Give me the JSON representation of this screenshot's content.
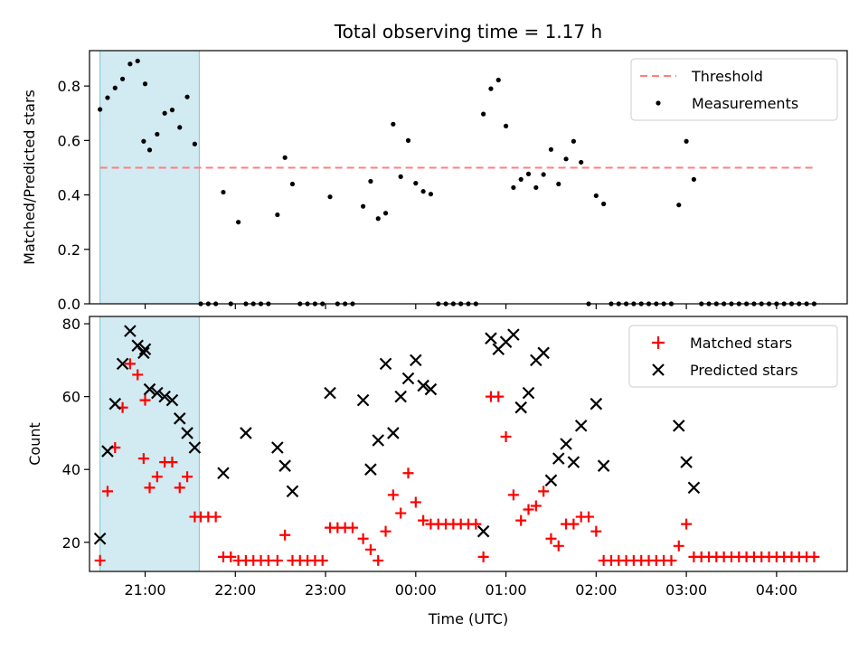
{
  "title": "Total observing time = 1.17 h",
  "colors": {
    "matched": "#ff0000",
    "predicted": "#000000",
    "threshold": "#ff7f7f",
    "shade": "#add8e6"
  },
  "chart_data": [
    {
      "type": "scatter",
      "ylabel": "Matched/Predicted stars",
      "xlim": [
        "20:23",
        "04:47"
      ],
      "ylim": [
        0,
        0.93
      ],
      "yticks": [
        "0.0",
        "0.2",
        "0.4",
        "0.6",
        "0.8"
      ],
      "ytick_values": [
        0,
        0.2,
        0.4,
        0.6,
        0.8
      ],
      "shaded_span": [
        "20:30",
        "21:36"
      ],
      "threshold": {
        "name": "Threshold",
        "value": 0.5,
        "x_range": [
          "20:30",
          "04:24"
        ]
      },
      "series": [
        {
          "name": "Measurements",
          "marker": "dot",
          "points": [
            [
              "20:30",
              0.714
            ],
            [
              "20:35",
              0.757
            ],
            [
              "20:40",
              0.793
            ],
            [
              "20:45",
              0.826
            ],
            [
              "20:50",
              0.881
            ],
            [
              "20:55",
              0.892
            ],
            [
              "21:00",
              0.808
            ],
            [
              "20:59",
              0.597
            ],
            [
              "21:03",
              0.565
            ],
            [
              "21:08",
              0.623
            ],
            [
              "21:13",
              0.7
            ],
            [
              "21:18",
              0.712
            ],
            [
              "21:23",
              0.648
            ],
            [
              "21:28",
              0.76
            ],
            [
              "21:33",
              0.587
            ],
            [
              "21:37",
              0.0
            ],
            [
              "21:42",
              0.0
            ],
            [
              "21:47",
              0.0
            ],
            [
              "21:52",
              0.41
            ],
            [
              "21:57",
              0.0
            ],
            [
              "22:02",
              0.3
            ],
            [
              "22:07",
              0.0
            ],
            [
              "22:12",
              0.0
            ],
            [
              "22:17",
              0.0
            ],
            [
              "22:22",
              0.0
            ],
            [
              "22:28",
              0.327
            ],
            [
              "22:33",
              0.537
            ],
            [
              "22:38",
              0.44
            ],
            [
              "22:43",
              0.0
            ],
            [
              "22:48",
              0.0
            ],
            [
              "22:53",
              0.0
            ],
            [
              "22:58",
              0.0
            ],
            [
              "23:03",
              0.393
            ],
            [
              "23:08",
              0.0
            ],
            [
              "23:13",
              0.0
            ],
            [
              "23:18",
              0.0
            ],
            [
              "23:25",
              0.358
            ],
            [
              "23:30",
              0.45
            ],
            [
              "23:35",
              0.313
            ],
            [
              "23:40",
              0.333
            ],
            [
              "23:45",
              0.66
            ],
            [
              "23:50",
              0.467
            ],
            [
              "23:55",
              0.6
            ],
            [
              "24:00",
              0.443
            ],
            [
              "24:05",
              0.413
            ],
            [
              "24:10",
              0.403
            ],
            [
              "24:15",
              0.0
            ],
            [
              "24:20",
              0.0
            ],
            [
              "24:25",
              0.0
            ],
            [
              "24:30",
              0.0
            ],
            [
              "24:35",
              0.0
            ],
            [
              "24:40",
              0.0
            ],
            [
              "24:45",
              0.697
            ],
            [
              "24:50",
              0.79
            ],
            [
              "24:55",
              0.822
            ],
            [
              "25:00",
              0.653
            ],
            [
              "25:05",
              0.427
            ],
            [
              "25:10",
              0.457
            ],
            [
              "25:15",
              0.477
            ],
            [
              "25:20",
              0.427
            ],
            [
              "25:25",
              0.475
            ],
            [
              "25:30",
              0.567
            ],
            [
              "25:35",
              0.44
            ],
            [
              "25:40",
              0.532
            ],
            [
              "25:45",
              0.597
            ],
            [
              "25:50",
              0.52
            ],
            [
              "25:55",
              0.0
            ],
            [
              "26:00",
              0.397
            ],
            [
              "26:05",
              0.367
            ],
            [
              "26:10",
              0.0
            ],
            [
              "26:15",
              0.0
            ],
            [
              "26:20",
              0.0
            ],
            [
              "26:25",
              0.0
            ],
            [
              "26:30",
              0.0
            ],
            [
              "26:35",
              0.0
            ],
            [
              "26:40",
              0.0
            ],
            [
              "26:45",
              0.0
            ],
            [
              "26:50",
              0.0
            ],
            [
              "26:55",
              0.363
            ],
            [
              "27:00",
              0.597
            ],
            [
              "27:05",
              0.457
            ],
            [
              "27:10",
              0.0
            ],
            [
              "27:15",
              0.0
            ],
            [
              "27:20",
              0.0
            ],
            [
              "27:25",
              0.0
            ],
            [
              "27:30",
              0.0
            ],
            [
              "27:35",
              0.0
            ],
            [
              "27:40",
              0.0
            ],
            [
              "27:45",
              0.0
            ],
            [
              "27:50",
              0.0
            ],
            [
              "27:55",
              0.0
            ],
            [
              "28:00",
              0.0
            ],
            [
              "28:05",
              0.0
            ],
            [
              "28:10",
              0.0
            ],
            [
              "28:15",
              0.0
            ],
            [
              "28:20",
              0.0
            ],
            [
              "28:25",
              0.0
            ]
          ]
        }
      ],
      "legend": {
        "position": "top-right",
        "entries": [
          "Threshold",
          "Measurements"
        ]
      }
    },
    {
      "type": "scatter",
      "xlabel": "Time (UTC)",
      "ylabel": "Count",
      "xlim": [
        "20:23",
        "04:47"
      ],
      "ylim": [
        12,
        82
      ],
      "yticks": [
        "20",
        "40",
        "60",
        "80"
      ],
      "ytick_values": [
        20,
        40,
        60,
        80
      ],
      "xticks": [
        "21:00",
        "22:00",
        "23:00",
        "00:00",
        "01:00",
        "02:00",
        "03:00",
        "04:00"
      ],
      "shaded_span": [
        "20:30",
        "21:36"
      ],
      "series": [
        {
          "name": "Matched stars",
          "marker": "plus",
          "points": [
            [
              "20:30",
              15
            ],
            [
              "20:35",
              34
            ],
            [
              "20:40",
              46
            ],
            [
              "20:45",
              57
            ],
            [
              "20:50",
              69
            ],
            [
              "20:55",
              66
            ],
            [
              "21:00",
              59
            ],
            [
              "20:59",
              43
            ],
            [
              "21:03",
              35
            ],
            [
              "21:08",
              38
            ],
            [
              "21:13",
              42
            ],
            [
              "21:18",
              42
            ],
            [
              "21:23",
              35
            ],
            [
              "21:28",
              38
            ],
            [
              "21:33",
              27
            ],
            [
              "21:37",
              27
            ],
            [
              "21:42",
              27
            ],
            [
              "21:47",
              27
            ],
            [
              "21:52",
              16
            ],
            [
              "21:57",
              16
            ],
            [
              "22:02",
              15
            ],
            [
              "22:07",
              15
            ],
            [
              "22:12",
              15
            ],
            [
              "22:17",
              15
            ],
            [
              "22:22",
              15
            ],
            [
              "22:28",
              15
            ],
            [
              "22:33",
              22
            ],
            [
              "22:38",
              15
            ],
            [
              "22:43",
              15
            ],
            [
              "22:48",
              15
            ],
            [
              "22:53",
              15
            ],
            [
              "22:58",
              15
            ],
            [
              "23:03",
              24
            ],
            [
              "23:08",
              24
            ],
            [
              "23:13",
              24
            ],
            [
              "23:18",
              24
            ],
            [
              "23:25",
              21
            ],
            [
              "23:30",
              18
            ],
            [
              "23:35",
              15
            ],
            [
              "23:40",
              23
            ],
            [
              "23:45",
              33
            ],
            [
              "23:50",
              28
            ],
            [
              "23:55",
              39
            ],
            [
              "24:00",
              31
            ],
            [
              "24:05",
              26
            ],
            [
              "24:10",
              25
            ],
            [
              "24:15",
              25
            ],
            [
              "24:20",
              25
            ],
            [
              "24:25",
              25
            ],
            [
              "24:30",
              25
            ],
            [
              "24:35",
              25
            ],
            [
              "24:40",
              25
            ],
            [
              "24:45",
              16
            ],
            [
              "24:50",
              60
            ],
            [
              "24:55",
              60
            ],
            [
              "25:00",
              49
            ],
            [
              "25:05",
              33
            ],
            [
              "25:10",
              26
            ],
            [
              "25:15",
              29
            ],
            [
              "25:20",
              30
            ],
            [
              "25:25",
              34
            ],
            [
              "25:30",
              21
            ],
            [
              "25:35",
              19
            ],
            [
              "25:40",
              25
            ],
            [
              "25:45",
              25
            ],
            [
              "25:50",
              27
            ],
            [
              "25:55",
              27
            ],
            [
              "26:00",
              23
            ],
            [
              "26:05",
              15
            ],
            [
              "26:10",
              15
            ],
            [
              "26:15",
              15
            ],
            [
              "26:20",
              15
            ],
            [
              "26:25",
              15
            ],
            [
              "26:30",
              15
            ],
            [
              "26:35",
              15
            ],
            [
              "26:40",
              15
            ],
            [
              "26:45",
              15
            ],
            [
              "26:50",
              15
            ],
            [
              "26:55",
              19
            ],
            [
              "27:00",
              25
            ],
            [
              "27:05",
              16
            ],
            [
              "27:10",
              16
            ],
            [
              "27:15",
              16
            ],
            [
              "27:20",
              16
            ],
            [
              "27:25",
              16
            ],
            [
              "27:30",
              16
            ],
            [
              "27:35",
              16
            ],
            [
              "27:40",
              16
            ],
            [
              "27:45",
              16
            ],
            [
              "27:50",
              16
            ],
            [
              "27:55",
              16
            ],
            [
              "28:00",
              16
            ],
            [
              "28:05",
              16
            ],
            [
              "28:10",
              16
            ],
            [
              "28:15",
              16
            ],
            [
              "28:20",
              16
            ],
            [
              "28:25",
              16
            ]
          ]
        },
        {
          "name": "Predicted stars",
          "marker": "x",
          "points": [
            [
              "20:30",
              21
            ],
            [
              "20:35",
              45
            ],
            [
              "20:40",
              58
            ],
            [
              "20:45",
              69
            ],
            [
              "20:50",
              78
            ],
            [
              "20:55",
              74
            ],
            [
              "21:00",
              73
            ],
            [
              "20:59",
              72
            ],
            [
              "21:03",
              62
            ],
            [
              "21:08",
              61
            ],
            [
              "21:13",
              60
            ],
            [
              "21:18",
              59
            ],
            [
              "21:23",
              54
            ],
            [
              "21:28",
              50
            ],
            [
              "21:33",
              46
            ],
            [
              "21:52",
              39
            ],
            [
              "22:07",
              50
            ],
            [
              "22:28",
              46
            ],
            [
              "22:33",
              41
            ],
            [
              "22:38",
              34
            ],
            [
              "23:03",
              61
            ],
            [
              "23:25",
              59
            ],
            [
              "23:30",
              40
            ],
            [
              "23:35",
              48
            ],
            [
              "23:40",
              69
            ],
            [
              "23:45",
              50
            ],
            [
              "23:50",
              60
            ],
            [
              "23:55",
              65
            ],
            [
              "24:00",
              70
            ],
            [
              "24:05",
              63
            ],
            [
              "24:10",
              62
            ],
            [
              "24:45",
              23
            ],
            [
              "24:50",
              76
            ],
            [
              "24:55",
              73
            ],
            [
              "25:00",
              75
            ],
            [
              "25:05",
              77
            ],
            [
              "25:10",
              57
            ],
            [
              "25:15",
              61
            ],
            [
              "25:20",
              70
            ],
            [
              "25:25",
              72
            ],
            [
              "25:30",
              37
            ],
            [
              "25:35",
              43
            ],
            [
              "25:40",
              47
            ],
            [
              "25:45",
              42
            ],
            [
              "25:50",
              52
            ],
            [
              "26:00",
              58
            ],
            [
              "26:05",
              41
            ],
            [
              "26:55",
              52
            ],
            [
              "27:00",
              42
            ],
            [
              "27:05",
              35
            ]
          ]
        }
      ],
      "legend": {
        "position": "top-right",
        "entries": [
          "Matched stars",
          "Predicted stars"
        ]
      }
    }
  ]
}
